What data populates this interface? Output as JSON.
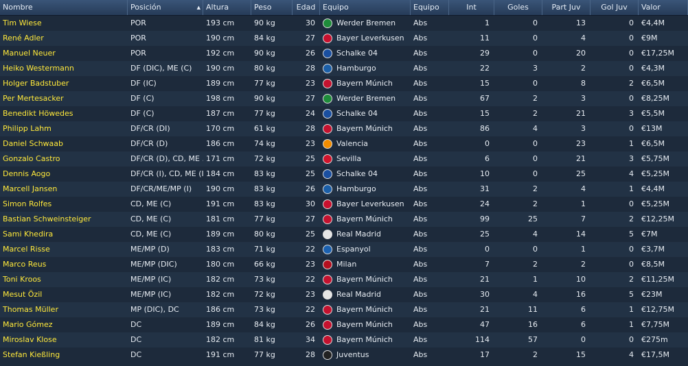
{
  "columns": [
    "Nombre",
    "Posición",
    "Altura",
    "Peso",
    "Edad",
    "Equipo",
    "Equipo",
    "Int",
    "Goles",
    "Part Juv",
    "Gol Juv",
    "Valor"
  ],
  "sort_indicator": "▲",
  "crest_colors": {
    "werder-bremen": "#1e8c3a",
    "bayer-leverkusen": "#c8102e",
    "schalke-04": "#1a4fa0",
    "hamburgo": "#1b5fa8",
    "bayern-munich": "#c4122f",
    "valencia": "#f28c00",
    "sevilla": "#d0142c",
    "real-madrid": "#e5e5e5",
    "espanyol": "#1b61b0",
    "milan": "#b30f1f",
    "juventus": "#222222"
  },
  "rows": [
    {
      "name": "Tim Wiese",
      "pos": "POR",
      "height": "193 cm",
      "weight": "90 kg",
      "age": "30",
      "club": "Werder Bremen",
      "crest": "werder-bremen",
      "team": "Abs",
      "int": "1",
      "goals": "0",
      "youth_apps": "13",
      "youth_goals": "0",
      "value": "€4,4M"
    },
    {
      "name": "René Adler",
      "pos": "POR",
      "height": "190 cm",
      "weight": "84 kg",
      "age": "27",
      "club": "Bayer Leverkusen",
      "crest": "bayer-leverkusen",
      "team": "Abs",
      "int": "11",
      "goals": "0",
      "youth_apps": "4",
      "youth_goals": "0",
      "value": "€9M"
    },
    {
      "name": "Manuel Neuer",
      "pos": "POR",
      "height": "192 cm",
      "weight": "90 kg",
      "age": "26",
      "club": "Schalke 04",
      "crest": "schalke-04",
      "team": "Abs",
      "int": "29",
      "goals": "0",
      "youth_apps": "20",
      "youth_goals": "0",
      "value": "€17,25M"
    },
    {
      "name": "Heiko Westermann",
      "pos": "DF (DIC), ME (C)",
      "height": "190 cm",
      "weight": "80 kg",
      "age": "28",
      "club": "Hamburgo",
      "crest": "hamburgo",
      "team": "Abs",
      "int": "22",
      "goals": "3",
      "youth_apps": "2",
      "youth_goals": "0",
      "value": "€4,3M"
    },
    {
      "name": "Holger Badstuber",
      "pos": "DF (IC)",
      "height": "189 cm",
      "weight": "77 kg",
      "age": "23",
      "club": "Bayern Múnich",
      "crest": "bayern-munich",
      "team": "Abs",
      "int": "15",
      "goals": "0",
      "youth_apps": "8",
      "youth_goals": "2",
      "value": "€6,5M"
    },
    {
      "name": "Per Mertesacker",
      "pos": "DF (C)",
      "height": "198 cm",
      "weight": "90 kg",
      "age": "27",
      "club": "Werder Bremen",
      "crest": "werder-bremen",
      "team": "Abs",
      "int": "67",
      "goals": "2",
      "youth_apps": "3",
      "youth_goals": "0",
      "value": "€8,25M"
    },
    {
      "name": "Benedikt Höwedes",
      "pos": "DF (C)",
      "height": "187 cm",
      "weight": "77 kg",
      "age": "24",
      "club": "Schalke 04",
      "crest": "schalke-04",
      "team": "Abs",
      "int": "15",
      "goals": "2",
      "youth_apps": "21",
      "youth_goals": "3",
      "value": "€5,5M"
    },
    {
      "name": "Philipp Lahm",
      "pos": "DF/CR (DI)",
      "height": "170 cm",
      "weight": "61 kg",
      "age": "28",
      "club": "Bayern Múnich",
      "crest": "bayern-munich",
      "team": "Abs",
      "int": "86",
      "goals": "4",
      "youth_apps": "3",
      "youth_goals": "0",
      "value": "€13M"
    },
    {
      "name": "Daniel Schwaab",
      "pos": "DF/CR (D)",
      "height": "186 cm",
      "weight": "74 kg",
      "age": "23",
      "club": "Valencia",
      "crest": "valencia",
      "team": "Abs",
      "int": "0",
      "goals": "0",
      "youth_apps": "23",
      "youth_goals": "1",
      "value": "€6,5M"
    },
    {
      "name": "Gonzalo Castro",
      "pos": "DF/CR (D), CD, ME ...",
      "height": "171 cm",
      "weight": "72 kg",
      "age": "25",
      "club": "Sevilla",
      "crest": "sevilla",
      "team": "Abs",
      "int": "6",
      "goals": "0",
      "youth_apps": "21",
      "youth_goals": "3",
      "value": "€5,75M"
    },
    {
      "name": "Dennis Aogo",
      "pos": "DF/CR (I), CD, ME (I...",
      "height": "184 cm",
      "weight": "83 kg",
      "age": "25",
      "club": "Schalke 04",
      "crest": "schalke-04",
      "team": "Abs",
      "int": "10",
      "goals": "0",
      "youth_apps": "25",
      "youth_goals": "4",
      "value": "€5,25M"
    },
    {
      "name": "Marcell Jansen",
      "pos": "DF/CR/ME/MP (I)",
      "height": "190 cm",
      "weight": "83 kg",
      "age": "26",
      "club": "Hamburgo",
      "crest": "hamburgo",
      "team": "Abs",
      "int": "31",
      "goals": "2",
      "youth_apps": "4",
      "youth_goals": "1",
      "value": "€4,4M"
    },
    {
      "name": "Simon Rolfes",
      "pos": "CD, ME (C)",
      "height": "191 cm",
      "weight": "83 kg",
      "age": "30",
      "club": "Bayer Leverkusen",
      "crest": "bayer-leverkusen",
      "team": "Abs",
      "int": "24",
      "goals": "2",
      "youth_apps": "1",
      "youth_goals": "0",
      "value": "€5,25M"
    },
    {
      "name": "Bastian Schweinsteiger",
      "pos": "CD, ME (C)",
      "height": "181 cm",
      "weight": "77 kg",
      "age": "27",
      "club": "Bayern Múnich",
      "crest": "bayern-munich",
      "team": "Abs",
      "int": "99",
      "goals": "25",
      "youth_apps": "7",
      "youth_goals": "2",
      "value": "€12,25M"
    },
    {
      "name": "Sami Khedira",
      "pos": "CD, ME (C)",
      "height": "189 cm",
      "weight": "80 kg",
      "age": "25",
      "club": "Real Madrid",
      "crest": "real-madrid",
      "team": "Abs",
      "int": "25",
      "goals": "4",
      "youth_apps": "14",
      "youth_goals": "5",
      "value": "€7M"
    },
    {
      "name": "Marcel Risse",
      "pos": "ME/MP (D)",
      "height": "183 cm",
      "weight": "71 kg",
      "age": "22",
      "club": "Espanyol",
      "crest": "espanyol",
      "team": "Abs",
      "int": "0",
      "goals": "0",
      "youth_apps": "1",
      "youth_goals": "0",
      "value": "€3,7M"
    },
    {
      "name": "Marco Reus",
      "pos": "ME/MP (DIC)",
      "height": "180 cm",
      "weight": "66 kg",
      "age": "23",
      "club": "Milan",
      "crest": "milan",
      "team": "Abs",
      "int": "7",
      "goals": "2",
      "youth_apps": "2",
      "youth_goals": "0",
      "value": "€8,5M"
    },
    {
      "name": "Toni Kroos",
      "pos": "ME/MP (IC)",
      "height": "182 cm",
      "weight": "73 kg",
      "age": "22",
      "club": "Bayern Múnich",
      "crest": "bayern-munich",
      "team": "Abs",
      "int": "21",
      "goals": "1",
      "youth_apps": "10",
      "youth_goals": "2",
      "value": "€11,25M"
    },
    {
      "name": "Mesut Özil",
      "pos": "ME/MP (IC)",
      "height": "182 cm",
      "weight": "72 kg",
      "age": "23",
      "club": "Real Madrid",
      "crest": "real-madrid",
      "team": "Abs",
      "int": "30",
      "goals": "4",
      "youth_apps": "16",
      "youth_goals": "5",
      "value": "€23M"
    },
    {
      "name": "Thomas Müller",
      "pos": "MP (DIC), DC",
      "height": "186 cm",
      "weight": "73 kg",
      "age": "22",
      "club": "Bayern Múnich",
      "crest": "bayern-munich",
      "team": "Abs",
      "int": "21",
      "goals": "11",
      "youth_apps": "6",
      "youth_goals": "1",
      "value": "€12,75M"
    },
    {
      "name": "Mario Gómez",
      "pos": "DC",
      "height": "189 cm",
      "weight": "84 kg",
      "age": "26",
      "club": "Bayern Múnich",
      "crest": "bayern-munich",
      "team": "Abs",
      "int": "47",
      "goals": "16",
      "youth_apps": "6",
      "youth_goals": "1",
      "value": "€7,75M"
    },
    {
      "name": "Miroslav Klose",
      "pos": "DC",
      "height": "182 cm",
      "weight": "81 kg",
      "age": "34",
      "club": "Bayern Múnich",
      "crest": "bayern-munich",
      "team": "Abs",
      "int": "114",
      "goals": "57",
      "youth_apps": "0",
      "youth_goals": "0",
      "value": "€275m"
    },
    {
      "name": "Stefan Kießling",
      "pos": "DC",
      "height": "191 cm",
      "weight": "77 kg",
      "age": "28",
      "club": "Juventus",
      "crest": "juventus",
      "team": "Abs",
      "int": "17",
      "goals": "2",
      "youth_apps": "15",
      "youth_goals": "4",
      "value": "€17,5M"
    }
  ]
}
